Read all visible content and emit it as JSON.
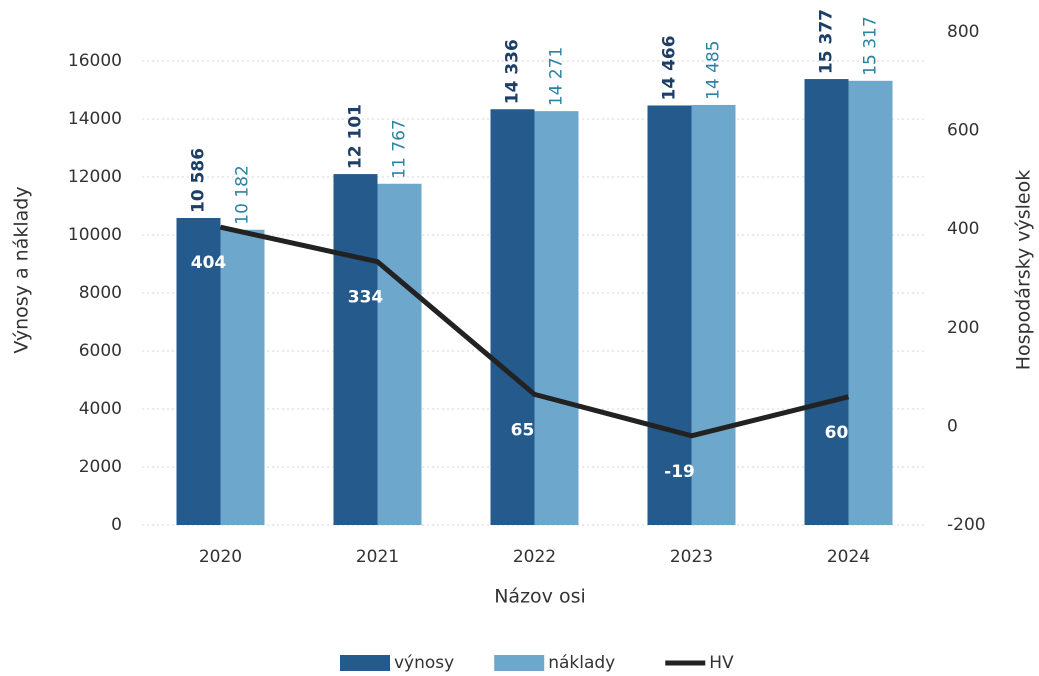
{
  "chart_data": {
    "type": "bar_line",
    "categories": [
      "2020",
      "2021",
      "2022",
      "2023",
      "2024"
    ],
    "x_label": "Názov osi",
    "y_label": "Výnosy a náklady",
    "y2_label": "Hospodársky výsleok",
    "ylim": [
      0,
      17000
    ],
    "yticks": [
      0,
      2000,
      4000,
      6000,
      8000,
      10000,
      12000,
      14000,
      16000
    ],
    "y2lim": [
      -200,
      800
    ],
    "y2ticks": [
      -200,
      0,
      200,
      400,
      600,
      800
    ],
    "grid": true,
    "legend": "bottom",
    "series": [
      {
        "name": "výnosy",
        "type": "bar",
        "color": "#245a8c",
        "label_color": "#1d3f66",
        "values": [
          10586,
          12101,
          14336,
          14466,
          15377
        ],
        "value_labels": [
          "10 586",
          "12 101",
          "14 336",
          "14 466",
          "15 377"
        ]
      },
      {
        "name": "náklady",
        "type": "bar",
        "color": "#6ea7cc",
        "label_color": "#2b82a3",
        "values": [
          10182,
          11767,
          14271,
          14485,
          15317
        ],
        "value_labels": [
          "10 182",
          "11 767",
          "14 271",
          "14 485",
          "15 317"
        ]
      },
      {
        "name": "HV",
        "type": "line",
        "axis": "y2",
        "color": "#222222",
        "values": [
          404,
          334,
          65,
          -19,
          60
        ]
      }
    ]
  }
}
